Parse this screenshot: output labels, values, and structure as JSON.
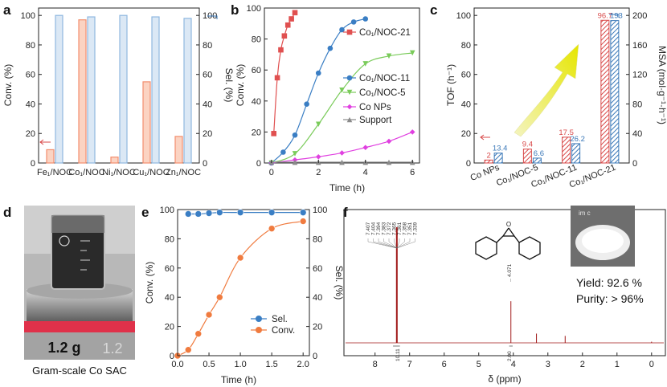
{
  "panel_labels": {
    "a": "a",
    "b": "b",
    "c": "c",
    "d": "d",
    "e": "e",
    "f": "f"
  },
  "colors": {
    "conv": "#f28e6e",
    "sel": "#8fb8e0",
    "blue": "#3a7ec4",
    "red": "#e05050",
    "green": "#7acb5a",
    "magenta": "#e040e0",
    "grey": "#8a8a8a",
    "orange": "#f07b3f",
    "nmr": "#a01818",
    "accent_arrow": "#e6e600"
  },
  "chart_data": [
    {
      "id": "a",
      "type": "bar",
      "categories": [
        "Fe₁/NOC",
        "Co₁/NOC",
        "Ni₁/NOC",
        "Cu₁/NOC",
        "Zn₁/NOC"
      ],
      "series": [
        {
          "name": "Conv.",
          "values": [
            9,
            97,
            4,
            55,
            18
          ],
          "axis": "left"
        },
        {
          "name": "Sel.",
          "values": [
            100,
            99,
            100,
            99,
            98
          ],
          "axis": "right"
        }
      ],
      "ylabel": "Conv. (%)",
      "y2label": "Sel. (%)",
      "ylim": [
        0,
        105
      ],
      "y2lim": [
        0,
        105
      ],
      "yticks": [
        0,
        20,
        40,
        60,
        80,
        100
      ],
      "y2ticks": [
        0,
        20,
        40,
        60,
        80,
        100
      ]
    },
    {
      "id": "b",
      "type": "line",
      "xlabel": "Time (h)",
      "ylabel": "Conv. (%)",
      "xlim": [
        -0.3,
        6.3
      ],
      "ylim": [
        0,
        100
      ],
      "xticks": [
        0,
        2,
        4,
        6
      ],
      "yticks": [
        0,
        20,
        40,
        60,
        80,
        100
      ],
      "series": [
        {
          "name": "Co₁/NOC-21",
          "marker": "square",
          "color": "red",
          "x": [
            0.1,
            0.25,
            0.4,
            0.55,
            0.7,
            0.85,
            1.0
          ],
          "y": [
            19,
            55,
            73,
            82,
            89,
            93,
            97
          ]
        },
        {
          "name": "Co₁/NOC-11",
          "marker": "circle",
          "color": "blue",
          "x": [
            0,
            0.5,
            1,
            1.5,
            2,
            2.5,
            3,
            3.5,
            4
          ],
          "y": [
            0,
            7,
            18,
            38,
            58,
            74,
            86,
            91,
            93
          ]
        },
        {
          "name": "Co₁/NOC-5",
          "marker": "triangle-down",
          "color": "green",
          "x": [
            0,
            1,
            2,
            3,
            4,
            5,
            6
          ],
          "y": [
            0,
            6,
            25,
            47,
            64,
            69,
            71
          ]
        },
        {
          "name": "Co NPs",
          "marker": "diamond",
          "color": "magenta",
          "x": [
            0,
            1,
            2,
            3,
            4,
            5,
            6
          ],
          "y": [
            0,
            2,
            4,
            6.5,
            10,
            14,
            20
          ]
        },
        {
          "name": "Support",
          "marker": "triangle-up",
          "color": "grey",
          "x": [
            0,
            1,
            2,
            3,
            4,
            5,
            6
          ],
          "y": [
            0.5,
            0.5,
            0.5,
            0.5,
            0.5,
            0.5,
            0.5
          ]
        }
      ]
    },
    {
      "id": "c",
      "type": "bar",
      "categories": [
        "Co NPs",
        "Co₁/NOC-5",
        "Co₁/NOC-11",
        "Co₁/NOC-21"
      ],
      "series": [
        {
          "name": "TOF",
          "values": [
            2,
            9.4,
            17.5,
            96.7
          ],
          "labels": [
            "2",
            "9.4",
            "17.5",
            "96.7"
          ],
          "axis": "left"
        },
        {
          "name": "MSA",
          "values": [
            13.4,
            6.6,
            26.2,
            193
          ],
          "labels": [
            "13.4",
            "6.6",
            "26.2",
            "193"
          ],
          "axis": "right"
        }
      ],
      "ylabel": "TOF (h⁻¹)",
      "y2label": "MSA (mol·g⁻¹·h⁻¹)",
      "ylim": [
        0,
        105
      ],
      "y2lim": [
        0,
        210
      ],
      "yticks": [
        0,
        20,
        40,
        60,
        80,
        100
      ],
      "y2ticks": [
        0,
        40,
        80,
        120,
        160,
        200
      ]
    },
    {
      "id": "e",
      "type": "line",
      "xlabel": "Time (h)",
      "ylabel": "Conv. (%)",
      "y2label": "Sel. (%)",
      "xlim": [
        0,
        2.1
      ],
      "ylim": [
        0,
        100
      ],
      "y2lim": [
        0,
        100
      ],
      "xticks": [
        0.0,
        0.5,
        1.0,
        1.5,
        2.0
      ],
      "yticks": [
        0,
        20,
        40,
        60,
        80,
        100
      ],
      "y2ticks": [
        0,
        20,
        40,
        60,
        80,
        100
      ],
      "series": [
        {
          "name": "Sel.",
          "color": "blue",
          "axis": "right",
          "x": [
            0.17,
            0.33,
            0.5,
            0.67,
            1.0,
            1.5,
            2.0
          ],
          "y": [
            97,
            97,
            97.5,
            98,
            98,
            98,
            98
          ]
        },
        {
          "name": "Conv.",
          "color": "orange",
          "axis": "left",
          "x": [
            0,
            0.17,
            0.33,
            0.5,
            0.67,
            1.0,
            1.5,
            2.0
          ],
          "y": [
            0,
            4,
            15,
            28,
            40,
            67,
            87,
            92
          ]
        }
      ]
    },
    {
      "id": "f",
      "type": "line",
      "xlabel": "δ (ppm)",
      "xlim": [
        8.9,
        -0.4
      ],
      "xticks": [
        8,
        7,
        6,
        5,
        4,
        3,
        2,
        1,
        0
      ],
      "peaks": [
        {
          "ppm": 7.37,
          "h": 1.0
        },
        {
          "ppm": 4.07,
          "h": 0.36
        },
        {
          "ppm": 3.33,
          "h": 0.08
        },
        {
          "ppm": 2.5,
          "h": 0.06
        },
        {
          "ppm": 0.0,
          "h": 0.01
        }
      ],
      "peak_labels": [
        "7.407",
        "7.404",
        "7.394",
        "7.383",
        "7.372",
        "7.365",
        "7.361",
        "7.358",
        "7.351",
        "7.339"
      ],
      "label_4071": "4.071",
      "integral_1": "10.11",
      "integral_2": "2.00"
    }
  ],
  "panel_d": {
    "caption": "Gram-scale Co SAC",
    "weight": "1.2 g",
    "scale_readout": "1.2"
  },
  "panel_f_text": {
    "yield": "Yield: 92.6 %",
    "purity": "Purity: > 96%",
    "vial_label": "im c"
  }
}
